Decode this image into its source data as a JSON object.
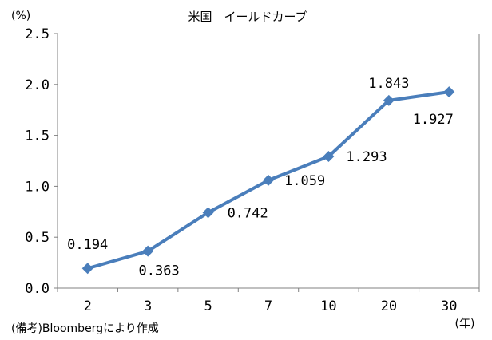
{
  "chart_data": {
    "type": "line",
    "title": "米国　イールドカーブ",
    "y_unit": "(%)",
    "x_unit": "(年)",
    "xlabel": "",
    "ylabel": "",
    "categories": [
      "2",
      "3",
      "5",
      "7",
      "10",
      "20",
      "30"
    ],
    "values": [
      0.194,
      0.363,
      0.742,
      1.059,
      1.293,
      1.843,
      1.927
    ],
    "data_labels": [
      "0.194",
      "0.363",
      "0.742",
      "1.059",
      "1.293",
      "1.843",
      "1.927"
    ],
    "ylim": [
      0,
      2.5
    ],
    "yticks": [
      "0.0",
      "0.5",
      "1.0",
      "1.5",
      "2.0",
      "2.5"
    ],
    "grid": false,
    "legend": "none",
    "series_color": "#4a7ebb",
    "axis_color": "#808080"
  },
  "footnote": "(備考)Bloombergにより作成"
}
